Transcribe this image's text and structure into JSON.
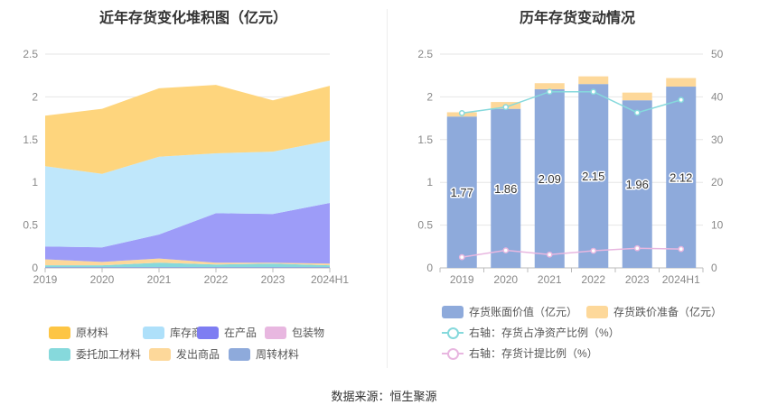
{
  "source": "数据来源：恒生聚源",
  "chart_data": [
    {
      "type": "area",
      "stacked": true,
      "title": "近年存货变化堆积图（亿元）",
      "categories": [
        "2019",
        "2020",
        "2021",
        "2022",
        "2023",
        "2024H1"
      ],
      "ylim": [
        0,
        2.5
      ],
      "yticks": [
        "0",
        "0.5",
        "1",
        "1.5",
        "2",
        "2.5"
      ],
      "series": [
        {
          "name": "周转材料",
          "color": "#8eaadb",
          "values": [
            0.01,
            0.01,
            0.01,
            0.01,
            0.01,
            0.01
          ]
        },
        {
          "name": "委托加工材料",
          "color": "#86d9dc",
          "values": [
            0.02,
            0.02,
            0.05,
            0.03,
            0.04,
            0.02
          ]
        },
        {
          "name": "发出商品",
          "color": "#fdd89a",
          "values": [
            0.07,
            0.04,
            0.05,
            0.02,
            0.01,
            0.02
          ]
        },
        {
          "name": "包装物",
          "color": "#e8b7e0",
          "values": [
            0.0,
            0.0,
            0.0,
            0.0,
            0.0,
            0.0
          ]
        },
        {
          "name": "在产品",
          "color": "#9d9cf8",
          "values": [
            0.15,
            0.17,
            0.28,
            0.58,
            0.57,
            0.71
          ]
        },
        {
          "name": "库存商品",
          "color": "#bfe7fb",
          "values": [
            0.94,
            0.86,
            0.91,
            0.7,
            0.73,
            0.73
          ]
        },
        {
          "name": "原材料",
          "color": "#fed57d",
          "values": [
            0.59,
            0.76,
            0.8,
            0.8,
            0.6,
            0.64
          ]
        }
      ],
      "legend": [
        {
          "name": "原材料",
          "color": "#fdc544"
        },
        {
          "name": "库存商品",
          "color": "#aee0fa"
        },
        {
          "name": "在产品",
          "color": "#7e7df2"
        },
        {
          "name": "包装物",
          "color": "#e8b7e0"
        },
        {
          "name": "委托加工材料",
          "color": "#86d9dc"
        },
        {
          "name": "发出商品",
          "color": "#fdd89a"
        },
        {
          "name": "周转材料",
          "color": "#8eaadb"
        }
      ]
    },
    {
      "type": "bar",
      "title": "历年存货变动情况",
      "categories": [
        "2019",
        "2020",
        "2021",
        "2022",
        "2023",
        "2024H1"
      ],
      "ylim": [
        0,
        2.5
      ],
      "yticks": [
        "0",
        "0.5",
        "1",
        "1.5",
        "2",
        "2.5"
      ],
      "y2lim": [
        0,
        50
      ],
      "y2ticks": [
        "0",
        "10",
        "20",
        "30",
        "40",
        "50"
      ],
      "bar_series": [
        {
          "name": "存货账面价值（亿元）",
          "color": "#8eaadb",
          "values": [
            1.77,
            1.86,
            2.09,
            2.15,
            1.96,
            2.12
          ],
          "labels": [
            "1.77",
            "1.86",
            "2.09",
            "2.15",
            "1.96",
            "2.12"
          ]
        },
        {
          "name": "存货跌价准备（亿元）",
          "color": "#fdd89a",
          "values": [
            0.05,
            0.08,
            0.07,
            0.09,
            0.09,
            0.1
          ]
        }
      ],
      "line_series": [
        {
          "name": "右轴：存货占净资产比例（%）",
          "color": "#86d9dc",
          "values": [
            36.2,
            37.6,
            41.2,
            41.2,
            36.3,
            39.3
          ]
        },
        {
          "name": "右轴：存货计提比例（%）",
          "color": "#e8b7e0",
          "values": [
            2.5,
            4.1,
            3.1,
            4.0,
            4.6,
            4.4
          ]
        }
      ]
    }
  ]
}
